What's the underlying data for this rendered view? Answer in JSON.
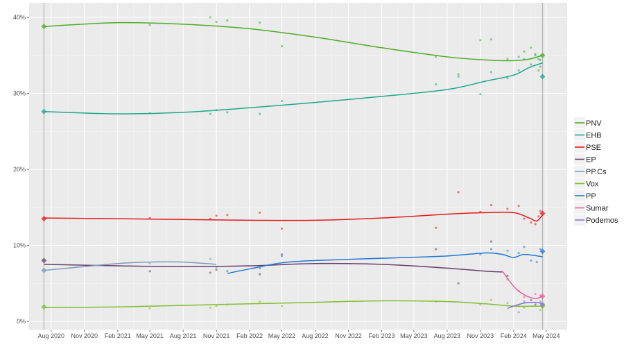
{
  "chart_data": {
    "type": "line",
    "title": "",
    "xlabel": "",
    "ylabel": "",
    "xlim": [
      "2020-06-01",
      "2024-06-28"
    ],
    "ylim": [
      0,
      40
    ],
    "grid": true,
    "legend_position": "right",
    "election_dates": [
      "2020-07-12",
      "2024-04-21"
    ],
    "x_ticks": [
      {
        "date": "2020-08-01",
        "label": "Aug 2020"
      },
      {
        "date": "2020-11-01",
        "label": "Nov 2020"
      },
      {
        "date": "2021-02-01",
        "label": "Feb 2021"
      },
      {
        "date": "2021-05-01",
        "label": "May 2021"
      },
      {
        "date": "2021-08-01",
        "label": "Aug 2021"
      },
      {
        "date": "2021-11-01",
        "label": "Nov 2021"
      },
      {
        "date": "2022-02-01",
        "label": "Feb 2022"
      },
      {
        "date": "2022-05-01",
        "label": "May 2022"
      },
      {
        "date": "2022-08-01",
        "label": "Aug 2022"
      },
      {
        "date": "2022-11-01",
        "label": "Nov 2022"
      },
      {
        "date": "2023-02-01",
        "label": "Feb 2023"
      },
      {
        "date": "2023-05-01",
        "label": "May 2023"
      },
      {
        "date": "2023-08-01",
        "label": "Aug 2023"
      },
      {
        "date": "2023-11-01",
        "label": "Nov 2023"
      },
      {
        "date": "2024-02-01",
        "label": "Feb 2024"
      },
      {
        "date": "2024-05-01",
        "label": "May 2024"
      }
    ],
    "y_ticks": [
      {
        "value": 0,
        "label": "0%"
      },
      {
        "value": 10,
        "label": "10%"
      },
      {
        "value": 20,
        "label": "20%"
      },
      {
        "value": 30,
        "label": "30%"
      },
      {
        "value": 40,
        "label": "40%"
      }
    ],
    "series": [
      {
        "name": "PNV",
        "color": "#4dac26",
        "trend": [
          [
            "2020-07-12",
            38.8
          ],
          [
            "2021-02-01",
            39.3
          ],
          [
            "2021-08-01",
            39.1
          ],
          [
            "2022-02-01",
            38.5
          ],
          [
            "2022-08-01",
            37.4
          ],
          [
            "2023-02-01",
            36.0
          ],
          [
            "2023-08-01",
            34.8
          ],
          [
            "2023-11-15",
            34.4
          ],
          [
            "2024-02-01",
            34.3
          ],
          [
            "2024-03-15",
            34.5
          ],
          [
            "2024-04-21",
            35.0
          ]
        ],
        "points": [
          [
            "2021-05-01",
            39.0
          ],
          [
            "2021-10-15",
            40.0
          ],
          [
            "2021-11-01",
            39.4
          ],
          [
            "2021-12-01",
            39.6
          ],
          [
            "2022-03-01",
            39.3
          ],
          [
            "2022-05-01",
            36.2
          ],
          [
            "2023-07-01",
            34.8
          ],
          [
            "2023-09-01",
            32.5
          ],
          [
            "2023-11-01",
            37.0
          ],
          [
            "2023-12-01",
            37.1
          ],
          [
            "2024-01-15",
            34.5
          ],
          [
            "2024-02-15",
            34.8
          ],
          [
            "2024-03-01",
            35.5
          ],
          [
            "2024-03-20",
            36.0
          ],
          [
            "2024-04-01",
            35.2
          ],
          [
            "2024-04-10",
            33.0
          ],
          [
            "2024-04-15",
            34.4
          ]
        ],
        "result_markers": [
          [
            "2020-07-12",
            38.8
          ],
          [
            "2024-04-21",
            35.0
          ]
        ]
      },
      {
        "name": "EHB",
        "color": "#1ea78a",
        "trend": [
          [
            "2020-07-12",
            27.6
          ],
          [
            "2021-02-01",
            27.3
          ],
          [
            "2021-08-01",
            27.5
          ],
          [
            "2022-02-01",
            28.1
          ],
          [
            "2022-08-01",
            28.8
          ],
          [
            "2023-02-01",
            29.6
          ],
          [
            "2023-08-01",
            30.5
          ],
          [
            "2023-11-15",
            31.6
          ],
          [
            "2024-02-01",
            32.4
          ],
          [
            "2024-03-15",
            33.4
          ],
          [
            "2024-04-21",
            34.0
          ]
        ],
        "points": [
          [
            "2021-05-01",
            27.4
          ],
          [
            "2021-10-15",
            27.3
          ],
          [
            "2021-11-01",
            27.8
          ],
          [
            "2021-12-01",
            27.5
          ],
          [
            "2022-03-01",
            27.3
          ],
          [
            "2022-05-01",
            29.0
          ],
          [
            "2023-07-01",
            31.2
          ],
          [
            "2023-09-01",
            32.2
          ],
          [
            "2023-11-01",
            29.9
          ],
          [
            "2023-12-01",
            32.8
          ],
          [
            "2024-01-15",
            32.0
          ],
          [
            "2024-02-15",
            33.0
          ],
          [
            "2024-03-01",
            34.5
          ],
          [
            "2024-03-20",
            33.8
          ],
          [
            "2024-04-01",
            35.0
          ],
          [
            "2024-04-10",
            34.5
          ],
          [
            "2024-04-15",
            33.5
          ]
        ],
        "result_markers": [
          [
            "2020-07-12",
            27.6
          ],
          [
            "2024-04-21",
            32.2
          ]
        ]
      },
      {
        "name": "PSE",
        "color": "#e41a1c",
        "trend": [
          [
            "2020-07-12",
            13.6
          ],
          [
            "2021-02-01",
            13.5
          ],
          [
            "2021-08-01",
            13.4
          ],
          [
            "2022-02-01",
            13.3
          ],
          [
            "2022-08-01",
            13.3
          ],
          [
            "2023-02-01",
            13.6
          ],
          [
            "2023-08-01",
            14.1
          ],
          [
            "2023-11-15",
            14.3
          ],
          [
            "2024-02-01",
            14.3
          ],
          [
            "2024-03-15",
            13.6
          ],
          [
            "2024-04-05",
            13.2
          ],
          [
            "2024-04-21",
            14.0
          ]
        ],
        "points": [
          [
            "2021-05-01",
            13.6
          ],
          [
            "2021-10-15",
            13.5
          ],
          [
            "2021-11-01",
            13.9
          ],
          [
            "2021-12-01",
            14.0
          ],
          [
            "2022-03-01",
            14.3
          ],
          [
            "2022-05-01",
            12.2
          ],
          [
            "2023-07-01",
            12.3
          ],
          [
            "2023-09-01",
            17.0
          ],
          [
            "2023-11-01",
            14.4
          ],
          [
            "2023-12-01",
            15.3
          ],
          [
            "2024-01-15",
            14.8
          ],
          [
            "2024-02-15",
            15.2
          ],
          [
            "2024-03-01",
            13.5
          ],
          [
            "2024-03-20",
            13.0
          ],
          [
            "2024-04-01",
            12.8
          ],
          [
            "2024-04-10",
            13.8
          ],
          [
            "2024-04-15",
            14.5
          ]
        ],
        "result_markers": [
          [
            "2020-07-12",
            13.5
          ],
          [
            "2024-04-21",
            14.2
          ]
        ]
      },
      {
        "name": "EP",
        "color": "#6a3d6d",
        "trend": [
          [
            "2020-07-12",
            7.5
          ],
          [
            "2021-02-01",
            7.3
          ],
          [
            "2021-08-01",
            7.2
          ],
          [
            "2022-02-01",
            7.3
          ],
          [
            "2022-08-01",
            7.6
          ],
          [
            "2023-02-01",
            7.5
          ],
          [
            "2023-08-01",
            7.0
          ],
          [
            "2023-11-15",
            6.6
          ],
          [
            "2024-01-01",
            6.5
          ]
        ],
        "points": [
          [
            "2021-05-01",
            6.6
          ],
          [
            "2021-10-15",
            6.4
          ],
          [
            "2021-11-01",
            6.8
          ],
          [
            "2022-03-01",
            6.2
          ],
          [
            "2022-05-01",
            8.8
          ],
          [
            "2023-07-01",
            9.5
          ],
          [
            "2023-09-01",
            5.0
          ],
          [
            "2023-12-01",
            10.5
          ],
          [
            "2024-01-15",
            6.0
          ]
        ],
        "result_markers": [
          [
            "2020-07-12",
            8.0
          ]
        ]
      },
      {
        "name": "PP.Cs",
        "color": "#7a9ac0",
        "trend": [
          [
            "2020-07-12",
            6.7
          ],
          [
            "2021-02-01",
            7.6
          ],
          [
            "2021-05-01",
            7.8
          ],
          [
            "2021-08-01",
            7.8
          ],
          [
            "2021-11-01",
            7.5
          ]
        ],
        "points": [
          [
            "2021-05-01",
            7.6
          ],
          [
            "2021-10-15",
            8.2
          ],
          [
            "2021-11-01",
            7.1
          ]
        ],
        "result_markers": [
          [
            "2020-07-12",
            6.7
          ]
        ]
      },
      {
        "name": "Vox",
        "color": "#7fbf2e",
        "trend": [
          [
            "2020-07-12",
            1.8
          ],
          [
            "2021-02-01",
            1.9
          ],
          [
            "2021-08-01",
            2.1
          ],
          [
            "2022-02-01",
            2.3
          ],
          [
            "2022-08-01",
            2.5
          ],
          [
            "2023-02-01",
            2.7
          ],
          [
            "2023-08-01",
            2.6
          ],
          [
            "2023-11-15",
            2.3
          ],
          [
            "2024-02-01",
            2.0
          ],
          [
            "2024-04-21",
            2.0
          ]
        ],
        "points": [
          [
            "2021-05-01",
            1.7
          ],
          [
            "2021-10-15",
            1.8
          ],
          [
            "2021-11-01",
            2.0
          ],
          [
            "2021-12-01",
            2.2
          ],
          [
            "2022-03-01",
            2.6
          ],
          [
            "2022-05-01",
            2.0
          ],
          [
            "2023-07-01",
            2.6
          ],
          [
            "2023-11-01",
            2.2
          ],
          [
            "2023-12-01",
            2.8
          ],
          [
            "2024-01-15",
            2.4
          ],
          [
            "2024-02-15",
            2.0
          ],
          [
            "2024-03-01",
            1.8
          ],
          [
            "2024-04-01",
            2.2
          ],
          [
            "2024-04-15",
            1.5
          ]
        ],
        "result_markers": [
          [
            "2020-07-12",
            1.9
          ],
          [
            "2024-04-21",
            2.0
          ]
        ]
      },
      {
        "name": "PP",
        "color": "#1f78d4",
        "trend": [
          [
            "2021-12-01",
            6.3
          ],
          [
            "2022-02-01",
            6.9
          ],
          [
            "2022-05-01",
            7.7
          ],
          [
            "2022-08-01",
            8.0
          ],
          [
            "2023-02-01",
            8.3
          ],
          [
            "2023-08-01",
            8.6
          ],
          [
            "2023-11-15",
            9.0
          ],
          [
            "2024-01-01",
            8.8
          ],
          [
            "2024-02-01",
            8.4
          ],
          [
            "2024-03-01",
            8.8
          ],
          [
            "2024-04-21",
            8.5
          ]
        ],
        "points": [
          [
            "2021-12-01",
            6.6
          ],
          [
            "2022-03-01",
            7.0
          ],
          [
            "2022-05-01",
            8.6
          ],
          [
            "2023-11-01",
            8.8
          ],
          [
            "2023-12-01",
            9.5
          ],
          [
            "2024-01-15",
            9.3
          ],
          [
            "2024-02-15",
            9.0
          ],
          [
            "2024-03-01",
            9.8
          ],
          [
            "2024-03-20",
            8.0
          ],
          [
            "2024-04-05",
            7.8
          ],
          [
            "2024-04-15",
            9.5
          ]
        ],
        "result_markers": [
          [
            "2024-04-21",
            9.2
          ]
        ]
      },
      {
        "name": "Sumar",
        "color": "#e8619c",
        "trend": [
          [
            "2024-01-01",
            6.6
          ],
          [
            "2024-02-01",
            4.6
          ],
          [
            "2024-03-01",
            3.5
          ],
          [
            "2024-04-01",
            3.0
          ],
          [
            "2024-04-21",
            3.3
          ]
        ],
        "points": [
          [
            "2024-01-15",
            5.5
          ],
          [
            "2024-02-15",
            4.0
          ],
          [
            "2024-03-01",
            3.2
          ],
          [
            "2024-03-20",
            2.8
          ],
          [
            "2024-04-01",
            3.6
          ],
          [
            "2024-04-15",
            3.4
          ]
        ],
        "result_markers": [
          [
            "2024-04-21",
            3.3
          ]
        ]
      },
      {
        "name": "Podemos",
        "color": "#8b74d8",
        "trend": [
          [
            "2024-01-15",
            1.7
          ],
          [
            "2024-02-01",
            2.0
          ],
          [
            "2024-03-01",
            2.4
          ],
          [
            "2024-04-01",
            2.5
          ],
          [
            "2024-04-21",
            2.3
          ]
        ],
        "points": [
          [
            "2024-02-15",
            1.2
          ],
          [
            "2024-03-01",
            2.6
          ],
          [
            "2024-03-20",
            2.8
          ],
          [
            "2024-04-01",
            2.2
          ],
          [
            "2024-04-15",
            2.6
          ]
        ],
        "result_markers": [
          [
            "2024-04-21",
            2.2
          ]
        ]
      }
    ]
  }
}
